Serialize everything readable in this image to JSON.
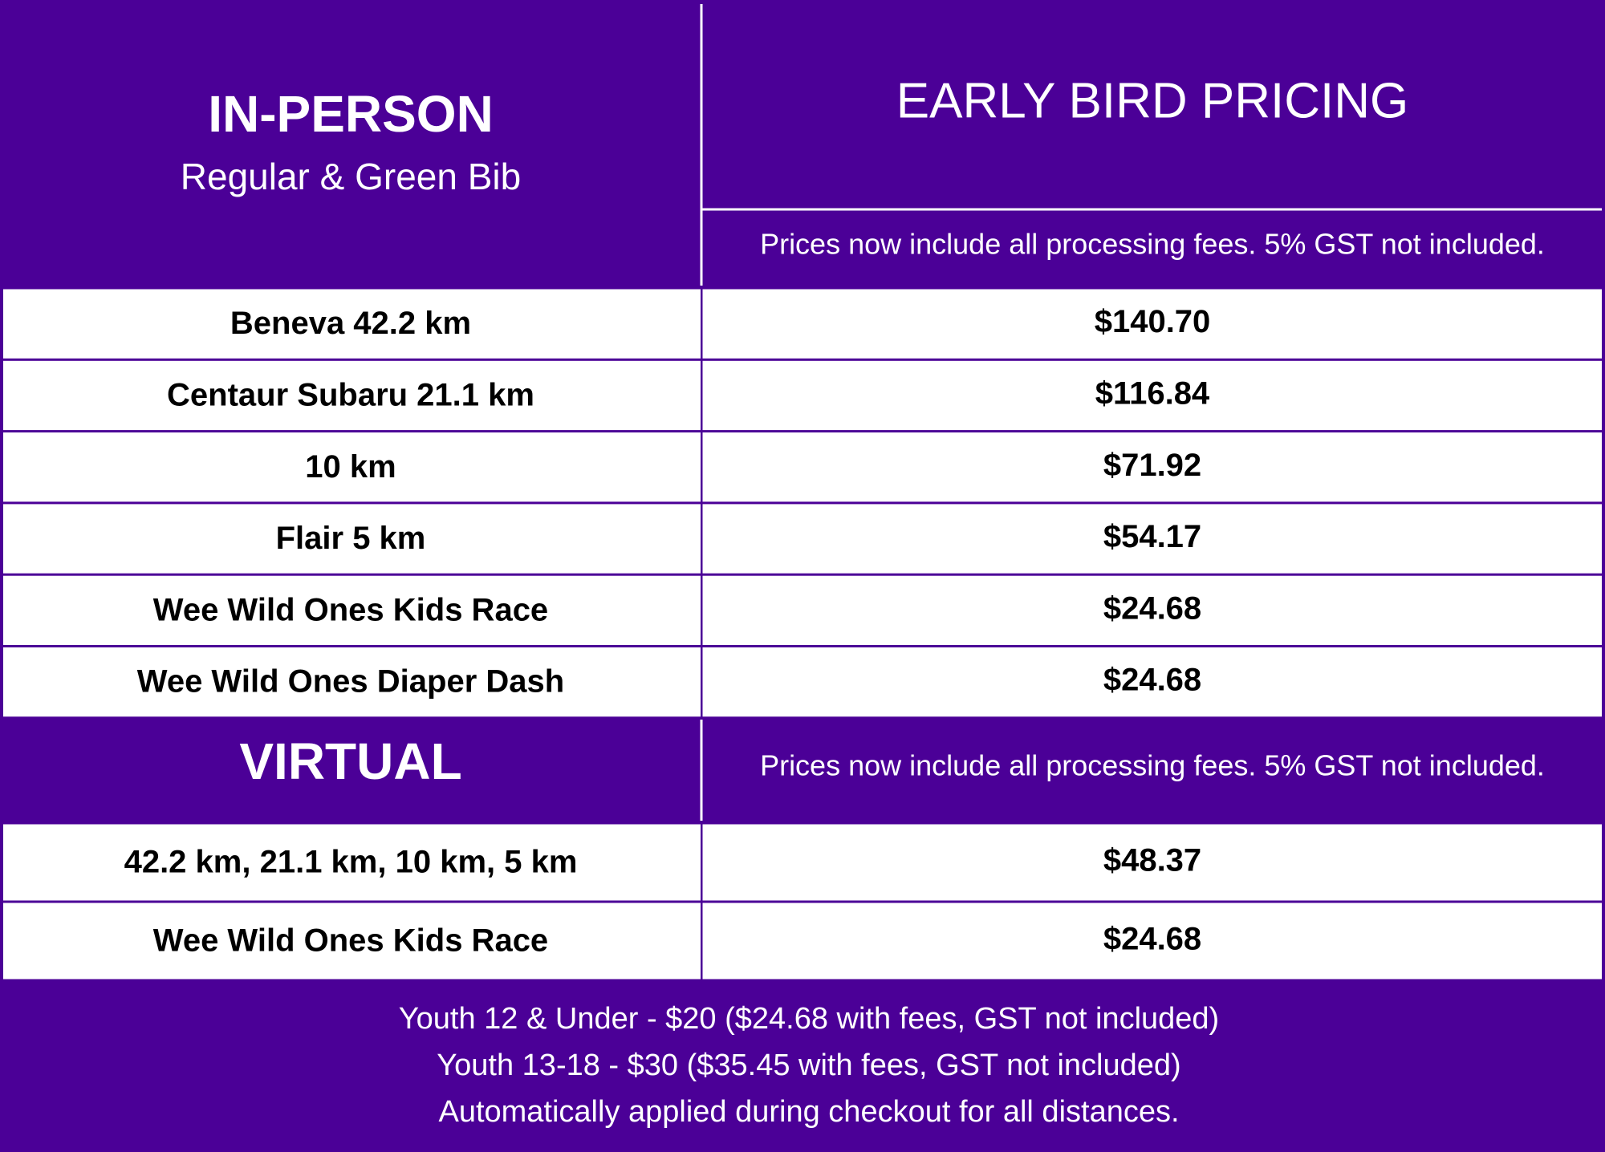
{
  "header": {
    "left_title": "IN-PERSON",
    "left_subtitle": "Regular & Green Bib",
    "right_title": "EARLY BIRD PRICING",
    "note": "Prices now include all processing fees. 5% GST not included."
  },
  "in_person": {
    "rows": [
      [
        "Beneva 42.2 km",
        "$140.70"
      ],
      [
        "Centaur Subaru 21.1 km",
        "$116.84"
      ],
      [
        "10 km",
        "$71.92"
      ],
      [
        "Flair 5 km",
        "$54.17"
      ],
      [
        "Wee Wild Ones Kids Race",
        "$24.68"
      ],
      [
        "Wee Wild Ones Diaper Dash",
        "$24.68"
      ]
    ]
  },
  "virtual": {
    "title": "VIRTUAL",
    "note": "Prices now include all processing fees. 5% GST not included.",
    "rows": [
      [
        "42.2 km, 21.1 km, 10 km, 5 km",
        "$48.37"
      ],
      [
        "Wee Wild Ones Kids Race",
        "$24.68"
      ]
    ]
  },
  "footer": {
    "lines": [
      "Youth 12 & Under - $20 ($24.68 with fees, GST not included)",
      "Youth 13-18 - $30 ($35.45 with fees, GST not included)",
      "Automatically applied during checkout for all distances."
    ]
  }
}
